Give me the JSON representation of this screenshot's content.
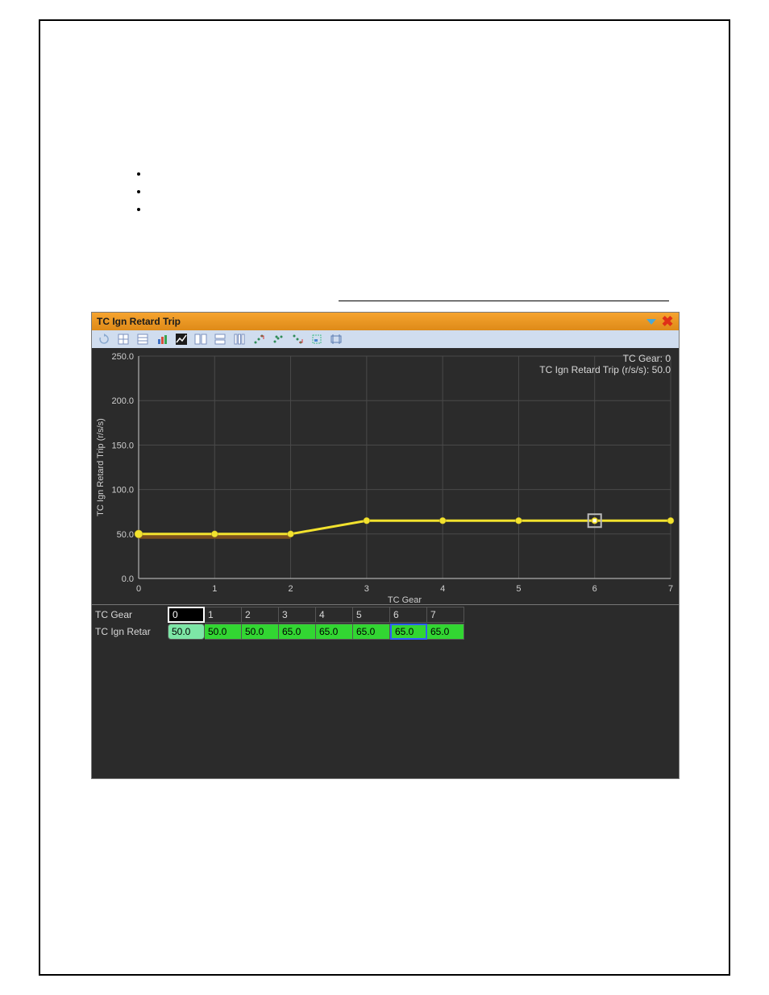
{
  "panel": {
    "title": "TC Ign Retard Trip"
  },
  "readout": {
    "line1": "TC Gear: 0",
    "line2": "TC Ign Retard Trip (r/s/s): 50.0"
  },
  "chart": {
    "xlabel": "TC Gear",
    "ylabel": "TC Ign Retard Trip (r/s/s)",
    "xlim": [
      0,
      7
    ],
    "ylim": [
      0,
      250
    ],
    "xticks": [
      0,
      1,
      2,
      3,
      4,
      5,
      6,
      7
    ],
    "yticks": [
      0.0,
      50.0,
      100.0,
      150.0,
      200.0,
      250.0
    ],
    "xtick_labels": [
      "0",
      "1",
      "2",
      "3",
      "4",
      "5",
      "6",
      "7"
    ],
    "ytick_labels": [
      "0.0",
      "50.0",
      "100.0",
      "150.0",
      "200.0",
      "250.0"
    ],
    "grid_color": "#4a4a4a",
    "axis_color": "#cccccc",
    "background_color": "#2b2b2b",
    "series": {
      "color": "#f2e22e",
      "shadow_color": "#7b4f1e",
      "marker_color": "#f2e22e",
      "marker_radius": 4,
      "line_width": 3,
      "x": [
        0,
        1,
        2,
        3,
        4,
        5,
        6,
        7
      ],
      "y": [
        50.0,
        50.0,
        50.0,
        65.0,
        65.0,
        65.0,
        65.0,
        65.0
      ]
    },
    "cursor_index": 6,
    "label_color": "#cfcfcf",
    "label_fontsize": 11
  },
  "table": {
    "row1_label": "TC Gear",
    "row2_label": "TC Ign Retar",
    "headers": [
      "0",
      "1",
      "2",
      "3",
      "4",
      "5",
      "6",
      "7"
    ],
    "values": [
      "50.0",
      "50.0",
      "50.0",
      "65.0",
      "65.0",
      "65.0",
      "65.0",
      "65.0"
    ],
    "selected_index": 6,
    "first_highlight_index": 0,
    "header_selected_index": 0,
    "value_bg": "#32d632",
    "value_first_bg": "#7de6a6",
    "selected_border": "#3060ff"
  },
  "toolbar_icons": [
    "refresh-icon",
    "grid-icon",
    "table-icon",
    "bar-chart-icon",
    "line-chart-icon",
    "side-by-side-icon",
    "stacked-icon",
    "columns-icon",
    "scatter-up-icon",
    "scatter-surf-icon",
    "scatter-down-icon",
    "zoom-region-icon",
    "zoom-fit-icon"
  ]
}
